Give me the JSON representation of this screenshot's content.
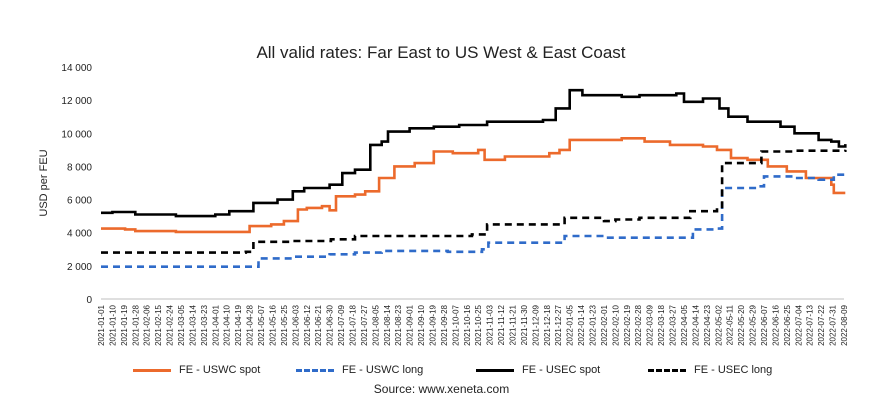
{
  "chart_data": {
    "type": "line",
    "title": "All valid rates: Far East to US West & East Coast",
    "ylabel": "USD per FEU",
    "xlabel": "",
    "ylim": [
      0,
      14000
    ],
    "yticks": [
      0,
      2000,
      4000,
      6000,
      8000,
      10000,
      12000,
      14000
    ],
    "ytick_labels": [
      "0",
      "2 000",
      "4 000",
      "6 000",
      "8 000",
      "10 000",
      "12 000",
      "14 000"
    ],
    "x_tick_labels": [
      "2021-01-01",
      "2021-01-10",
      "2021-01-19",
      "2021-01-28",
      "2021-02-06",
      "2021-02-15",
      "2021-02-24",
      "2021-03-05",
      "2021-03-14",
      "2021-03-23",
      "2021-04-01",
      "2021-04-10",
      "2021-04-19",
      "2021-04-28",
      "2021-05-07",
      "2021-05-16",
      "2021-05-25",
      "2021-06-03",
      "2021-06-12",
      "2021-06-21",
      "2021-06-30",
      "2021-07-09",
      "2021-07-18",
      "2021-07-27",
      "2021-08-05",
      "2021-08-14",
      "2021-08-23",
      "2021-09-01",
      "2021-09-10",
      "2021-09-19",
      "2021-09-28",
      "2021-10-07",
      "2021-10-16",
      "2021-10-25",
      "2021-11-03",
      "2021-11-12",
      "2021-11-21",
      "2021-11-30",
      "2021-12-09",
      "2021-12-18",
      "2021-12-27",
      "2022-01-05",
      "2022-01-14",
      "2022-01-23",
      "2022-02-01",
      "2022-02-10",
      "2022-02-19",
      "2022-02-28",
      "2022-03-09",
      "2022-03-18",
      "2022-03-27",
      "2022-04-05",
      "2022-04-14",
      "2022-04-23",
      "2022-05-02",
      "2022-05-11",
      "2022-05-20",
      "2022-05-29",
      "2022-06-07",
      "2022-06-16",
      "2022-06-25",
      "2022-07-04",
      "2022-07-13",
      "2022-07-22",
      "2022-07-31",
      "2022-08-09"
    ],
    "grid": false,
    "legend_position": "bottom",
    "series": [
      {
        "name": "FE - USWC spot",
        "color": "#ec6a2c",
        "dash": "solid",
        "points": [
          [
            "2021-01-01",
            4250
          ],
          [
            "2021-01-20",
            4200
          ],
          [
            "2021-01-28",
            4100
          ],
          [
            "2021-03-01",
            4050
          ],
          [
            "2021-04-25",
            4050
          ],
          [
            "2021-04-28",
            4400
          ],
          [
            "2021-05-15",
            4500
          ],
          [
            "2021-05-25",
            4700
          ],
          [
            "2021-06-05",
            5400
          ],
          [
            "2021-06-12",
            5500
          ],
          [
            "2021-06-24",
            5600
          ],
          [
            "2021-06-30",
            5350
          ],
          [
            "2021-07-05",
            6200
          ],
          [
            "2021-07-20",
            6300
          ],
          [
            "2021-07-28",
            6500
          ],
          [
            "2021-08-08",
            7300
          ],
          [
            "2021-08-20",
            8000
          ],
          [
            "2021-09-05",
            8200
          ],
          [
            "2021-09-20",
            8900
          ],
          [
            "2021-10-05",
            8800
          ],
          [
            "2021-10-25",
            9000
          ],
          [
            "2021-10-30",
            8400
          ],
          [
            "2021-11-15",
            8600
          ],
          [
            "2021-12-20",
            8800
          ],
          [
            "2021-12-28",
            9000
          ],
          [
            "2022-01-05",
            9600
          ],
          [
            "2022-02-15",
            9700
          ],
          [
            "2022-03-05",
            9500
          ],
          [
            "2022-03-25",
            9300
          ],
          [
            "2022-04-20",
            9200
          ],
          [
            "2022-05-01",
            9000
          ],
          [
            "2022-05-12",
            8500
          ],
          [
            "2022-05-25",
            8400
          ],
          [
            "2022-06-10",
            8000
          ],
          [
            "2022-06-25",
            7700
          ],
          [
            "2022-07-10",
            7300
          ],
          [
            "2022-07-30",
            6900
          ],
          [
            "2022-08-01",
            6400
          ],
          [
            "2022-08-10",
            6400
          ]
        ]
      },
      {
        "name": "FE - USWC long",
        "color": "#2f6bc9",
        "dash": "dashed",
        "points": [
          [
            "2021-01-01",
            1950
          ],
          [
            "2021-04-25",
            1950
          ],
          [
            "2021-05-05",
            2450
          ],
          [
            "2021-06-01",
            2550
          ],
          [
            "2021-06-30",
            2700
          ],
          [
            "2021-07-20",
            2800
          ],
          [
            "2021-08-10",
            2900
          ],
          [
            "2021-10-01",
            2850
          ],
          [
            "2021-10-28",
            3000
          ],
          [
            "2021-11-02",
            3400
          ],
          [
            "2021-12-25",
            3400
          ],
          [
            "2022-01-01",
            3800
          ],
          [
            "2022-02-01",
            3700
          ],
          [
            "2022-04-05",
            3700
          ],
          [
            "2022-04-12",
            4200
          ],
          [
            "2022-05-01",
            4250
          ],
          [
            "2022-05-05",
            6700
          ],
          [
            "2022-06-01",
            6800
          ],
          [
            "2022-06-07",
            7400
          ],
          [
            "2022-07-01",
            7300
          ],
          [
            "2022-07-20",
            7200
          ],
          [
            "2022-08-01",
            7500
          ],
          [
            "2022-08-10",
            7550
          ]
        ]
      },
      {
        "name": "FE - USEC spot",
        "color": "#000000",
        "dash": "solid",
        "points": [
          [
            "2021-01-01",
            5200
          ],
          [
            "2021-01-10",
            5250
          ],
          [
            "2021-01-28",
            5100
          ],
          [
            "2021-03-01",
            5000
          ],
          [
            "2021-04-01",
            5100
          ],
          [
            "2021-04-12",
            5300
          ],
          [
            "2021-05-01",
            5800
          ],
          [
            "2021-05-20",
            6000
          ],
          [
            "2021-06-01",
            6500
          ],
          [
            "2021-06-10",
            6700
          ],
          [
            "2021-06-30",
            6900
          ],
          [
            "2021-07-10",
            7600
          ],
          [
            "2021-07-20",
            7800
          ],
          [
            "2021-08-01",
            9300
          ],
          [
            "2021-08-10",
            9500
          ],
          [
            "2021-08-15",
            10100
          ],
          [
            "2021-09-01",
            10300
          ],
          [
            "2021-09-20",
            10400
          ],
          [
            "2021-10-10",
            10500
          ],
          [
            "2021-11-01",
            10700
          ],
          [
            "2021-12-15",
            10800
          ],
          [
            "2021-12-25",
            11500
          ],
          [
            "2022-01-05",
            12600
          ],
          [
            "2022-01-15",
            12300
          ],
          [
            "2022-02-15",
            12200
          ],
          [
            "2022-03-01",
            12300
          ],
          [
            "2022-03-30",
            12400
          ],
          [
            "2022-04-05",
            11900
          ],
          [
            "2022-04-20",
            12100
          ],
          [
            "2022-05-03",
            11500
          ],
          [
            "2022-05-10",
            11000
          ],
          [
            "2022-05-25",
            10700
          ],
          [
            "2022-06-20",
            10400
          ],
          [
            "2022-07-01",
            10000
          ],
          [
            "2022-07-20",
            9600
          ],
          [
            "2022-07-30",
            9500
          ],
          [
            "2022-08-05",
            9200
          ],
          [
            "2022-08-10",
            9350
          ]
        ]
      },
      {
        "name": "FE - USEC long",
        "color": "#000000",
        "dash": "dashed",
        "points": [
          [
            "2021-01-01",
            2800
          ],
          [
            "2021-04-25",
            2850
          ],
          [
            "2021-05-01",
            3450
          ],
          [
            "2021-06-01",
            3500
          ],
          [
            "2021-07-01",
            3600
          ],
          [
            "2021-07-20",
            3800
          ],
          [
            "2021-09-01",
            3800
          ],
          [
            "2021-10-20",
            3900
          ],
          [
            "2021-11-01",
            4500
          ],
          [
            "2021-12-25",
            4500
          ],
          [
            "2022-01-01",
            4900
          ],
          [
            "2022-02-01",
            4700
          ],
          [
            "2022-02-10",
            4800
          ],
          [
            "2022-03-01",
            4900
          ],
          [
            "2022-04-05",
            4900
          ],
          [
            "2022-04-10",
            5300
          ],
          [
            "2022-05-01",
            5400
          ],
          [
            "2022-05-05",
            8200
          ],
          [
            "2022-06-01",
            8200
          ],
          [
            "2022-06-05",
            8900
          ],
          [
            "2022-07-01",
            8950
          ],
          [
            "2022-08-10",
            9000
          ]
        ]
      }
    ]
  },
  "source": "Source: www.xeneta.com"
}
